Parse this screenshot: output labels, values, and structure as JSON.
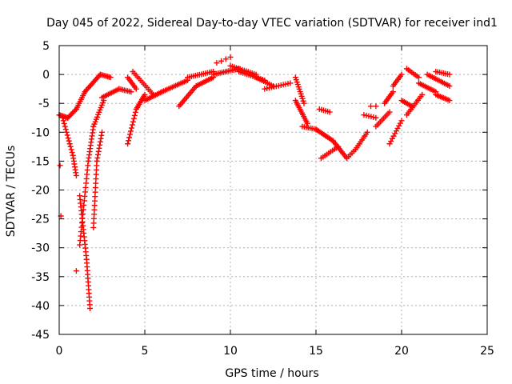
{
  "chart_data": {
    "type": "scatter",
    "title": "Day 045 of 2022, Sidereal Day-to-day VTEC variation (SDTVAR) for receiver ind1",
    "xlabel": "GPS time / hours",
    "ylabel": "SDTVAR / TECUs",
    "xlim": [
      0,
      25
    ],
    "ylim": [
      -45,
      5
    ],
    "xticks": [
      0,
      5,
      10,
      15,
      20,
      25
    ],
    "yticks": [
      5,
      0,
      -5,
      -10,
      -15,
      -20,
      -25,
      -30,
      -35,
      -40,
      -45
    ],
    "grid": true,
    "legend": "none",
    "marker": "+",
    "colors": {
      "series": "#ff0000",
      "grid": "#b0b0b0",
      "axis": "#000000"
    },
    "series": [
      {
        "name": "ind1",
        "segments": [
          {
            "from": [
              0.0,
              -7.0
            ],
            "to": [
              0.1,
              -24.5
            ],
            "points": 3
          },
          {
            "from": [
              0.0,
              -7.0
            ],
            "to": [
              0.5,
              -7.5
            ],
            "points": 8
          },
          {
            "from": [
              0.5,
              -7.5
            ],
            "to": [
              1.0,
              -6.0
            ],
            "points": 8
          },
          {
            "from": [
              1.0,
              -6.0
            ],
            "to": [
              1.5,
              -3.0
            ],
            "points": 10
          },
          {
            "from": [
              1.5,
              -3.0
            ],
            "to": [
              2.4,
              0.0
            ],
            "points": 14
          },
          {
            "from": [
              2.4,
              0.0
            ],
            "to": [
              3.0,
              -0.5
            ],
            "points": 8
          },
          {
            "from": [
              0.2,
              -7.5
            ],
            "to": [
              0.8,
              -14.0
            ],
            "points": 14
          },
          {
            "from": [
              0.8,
              -14.0
            ],
            "to": [
              1.0,
              -17.5
            ],
            "points": 8
          },
          {
            "from": [
              1.0,
              -34.0
            ],
            "to": [
              1.0,
              -34.0
            ],
            "points": 1
          },
          {
            "from": [
              1.2,
              -21.0
            ],
            "to": [
              1.6,
              -32.0
            ],
            "points": 18
          },
          {
            "from": [
              1.6,
              -32.0
            ],
            "to": [
              1.8,
              -40.5
            ],
            "points": 14
          },
          {
            "from": [
              1.2,
              -29.5
            ],
            "to": [
              1.7,
              -15.0
            ],
            "points": 20
          },
          {
            "from": [
              1.7,
              -15.0
            ],
            "to": [
              2.0,
              -9.0
            ],
            "points": 12
          },
          {
            "from": [
              2.0,
              -9.0
            ],
            "to": [
              2.6,
              -4.5
            ],
            "points": 12
          },
          {
            "from": [
              2.0,
              -26.5
            ],
            "to": [
              2.2,
              -15.0
            ],
            "points": 16
          },
          {
            "from": [
              2.2,
              -15.0
            ],
            "to": [
              2.5,
              -10.0
            ],
            "points": 10
          },
          {
            "from": [
              2.5,
              -4.0
            ],
            "to": [
              3.5,
              -2.5
            ],
            "points": 12
          },
          {
            "from": [
              3.5,
              -2.5
            ],
            "to": [
              4.2,
              -3.0
            ],
            "points": 8
          },
          {
            "from": [
              4.0,
              -0.5
            ],
            "to": [
              4.5,
              -2.5
            ],
            "points": 8
          },
          {
            "from": [
              4.0,
              -12.0
            ],
            "to": [
              4.5,
              -6.0
            ],
            "points": 12
          },
          {
            "from": [
              4.5,
              -6.0
            ],
            "to": [
              5.0,
              -3.5
            ],
            "points": 10
          },
          {
            "from": [
              4.3,
              0.5
            ],
            "to": [
              5.5,
              -3.5
            ],
            "points": 14
          },
          {
            "from": [
              5.0,
              -4.5
            ],
            "to": [
              6.0,
              -3.0
            ],
            "points": 12
          },
          {
            "from": [
              6.0,
              -3.0
            ],
            "to": [
              7.5,
              -1.0
            ],
            "points": 16
          },
          {
            "from": [
              7.0,
              -5.5
            ],
            "to": [
              8.0,
              -2.0
            ],
            "points": 14
          },
          {
            "from": [
              8.0,
              -2.0
            ],
            "to": [
              9.0,
              -0.5
            ],
            "points": 12
          },
          {
            "from": [
              7.5,
              -0.5
            ],
            "to": [
              9.0,
              0.5
            ],
            "points": 14
          },
          {
            "from": [
              9.0,
              0.0
            ],
            "to": [
              10.5,
              1.0
            ],
            "points": 16
          },
          {
            "from": [
              9.2,
              2.0
            ],
            "to": [
              10.0,
              3.0
            ],
            "points": 4
          },
          {
            "from": [
              10.0,
              1.5
            ],
            "to": [
              11.5,
              0.0
            ],
            "points": 14
          },
          {
            "from": [
              10.5,
              0.5
            ],
            "to": [
              12.0,
              -1.0
            ],
            "points": 14
          },
          {
            "from": [
              11.5,
              -0.5
            ],
            "to": [
              12.5,
              -2.0
            ],
            "points": 10
          },
          {
            "from": [
              12.0,
              -2.5
            ],
            "to": [
              13.5,
              -1.5
            ],
            "points": 12
          },
          {
            "from": [
              13.8,
              -0.5
            ],
            "to": [
              14.3,
              -5.0
            ],
            "points": 12
          },
          {
            "from": [
              13.8,
              -4.5
            ],
            "to": [
              14.5,
              -8.5
            ],
            "points": 14
          },
          {
            "from": [
              14.2,
              -9.0
            ],
            "to": [
              15.0,
              -9.5
            ],
            "points": 8
          },
          {
            "from": [
              15.0,
              -9.5
            ],
            "to": [
              16.0,
              -11.5
            ],
            "points": 14
          },
          {
            "from": [
              16.0,
              -11.5
            ],
            "to": [
              16.8,
              -14.5
            ],
            "points": 12
          },
          {
            "from": [
              15.2,
              -6.0
            ],
            "to": [
              15.8,
              -6.5
            ],
            "points": 6
          },
          {
            "from": [
              15.3,
              -14.5
            ],
            "to": [
              16.3,
              -12.5
            ],
            "points": 10
          },
          {
            "from": [
              16.8,
              -14.5
            ],
            "to": [
              17.3,
              -13.0
            ],
            "points": 6
          },
          {
            "from": [
              17.3,
              -13.0
            ],
            "to": [
              18.0,
              -10.0
            ],
            "points": 10
          },
          {
            "from": [
              17.8,
              -7.0
            ],
            "to": [
              18.5,
              -7.5
            ],
            "points": 6
          },
          {
            "from": [
              18.2,
              -5.5
            ],
            "to": [
              18.5,
              -5.5
            ],
            "points": 2
          },
          {
            "from": [
              18.5,
              -9.0
            ],
            "to": [
              19.3,
              -6.5
            ],
            "points": 10
          },
          {
            "from": [
              19.0,
              -5.0
            ],
            "to": [
              19.5,
              -3.0
            ],
            "points": 8
          },
          {
            "from": [
              19.3,
              -12.0
            ],
            "to": [
              20.0,
              -8.0
            ],
            "points": 10
          },
          {
            "from": [
              19.5,
              -2.0
            ],
            "to": [
              20.0,
              0.0
            ],
            "points": 8
          },
          {
            "from": [
              20.0,
              -4.5
            ],
            "to": [
              20.6,
              -5.5
            ],
            "points": 8
          },
          {
            "from": [
              20.3,
              1.0
            ],
            "to": [
              21.0,
              -0.5
            ],
            "points": 8
          },
          {
            "from": [
              20.3,
              -7.0
            ],
            "to": [
              21.2,
              -3.5
            ],
            "points": 12
          },
          {
            "from": [
              21.0,
              -1.5
            ],
            "to": [
              22.0,
              -3.0
            ],
            "points": 12
          },
          {
            "from": [
              21.5,
              0.0
            ],
            "to": [
              22.8,
              -2.0
            ],
            "points": 14
          },
          {
            "from": [
              22.0,
              -3.5
            ],
            "to": [
              22.8,
              -4.5
            ],
            "points": 10
          },
          {
            "from": [
              22.0,
              0.5
            ],
            "to": [
              22.8,
              0.0
            ],
            "points": 8
          }
        ]
      }
    ]
  }
}
